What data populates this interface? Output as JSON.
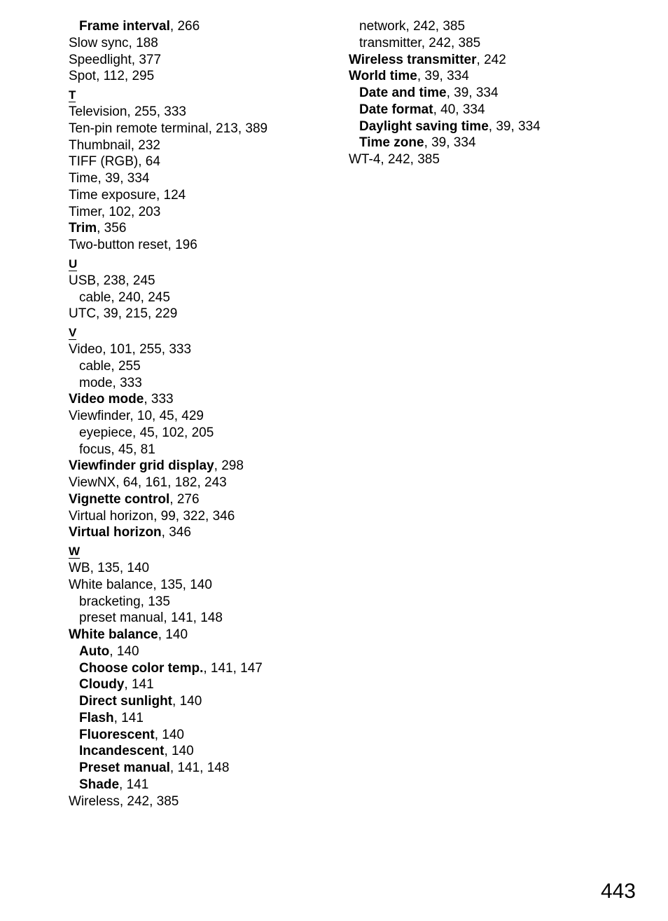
{
  "page_number": "443",
  "left_column": [
    {
      "bold_prefix": "Frame interval",
      "rest": ", 266",
      "indent": 1
    },
    {
      "text": "Slow sync, 188",
      "indent": 0
    },
    {
      "text": "Speedlight, 377",
      "indent": 0
    },
    {
      "text": "Spot, 112, 295",
      "indent": 0
    },
    {
      "letter": "T"
    },
    {
      "text": "Television, 255, 333",
      "indent": 0
    },
    {
      "text": "Ten-pin remote terminal, 213, 389",
      "indent": 0
    },
    {
      "text": "Thumbnail, 232",
      "indent": 0
    },
    {
      "text": "TIFF (RGB), 64",
      "indent": 0
    },
    {
      "text": "Time, 39, 334",
      "indent": 0
    },
    {
      "text": "Time exposure, 124",
      "indent": 0
    },
    {
      "text": "Timer, 102, 203",
      "indent": 0
    },
    {
      "bold_prefix": "Trim",
      "rest": ", 356",
      "indent": 0
    },
    {
      "text": "Two-button reset, 196",
      "indent": 0
    },
    {
      "letter": "U"
    },
    {
      "text": "USB, 238, 245",
      "indent": 0
    },
    {
      "text": "cable, 240, 245",
      "indent": 1
    },
    {
      "text": "UTC, 39, 215, 229",
      "indent": 0
    },
    {
      "letter": "V"
    },
    {
      "text": "Video, 101, 255, 333",
      "indent": 0
    },
    {
      "text": "cable, 255",
      "indent": 1
    },
    {
      "text": "mode, 333",
      "indent": 1
    },
    {
      "bold_prefix": "Video mode",
      "rest": ", 333",
      "indent": 0
    },
    {
      "text": "Viewfinder, 10, 45, 429",
      "indent": 0
    },
    {
      "text": "eyepiece, 45, 102, 205",
      "indent": 1
    },
    {
      "text": "focus, 45, 81",
      "indent": 1
    },
    {
      "bold_prefix": "Viewfinder grid display",
      "rest": ", 298",
      "indent": 0
    },
    {
      "text": "ViewNX, 64, 161, 182, 243",
      "indent": 0
    },
    {
      "bold_prefix": "Vignette control",
      "rest": ", 276",
      "indent": 0
    },
    {
      "text": "Virtual horizon, 99, 322, 346",
      "indent": 0
    },
    {
      "bold_prefix": "Virtual horizon",
      "rest": ", 346",
      "indent": 0
    },
    {
      "letter": "W"
    },
    {
      "text": "WB, 135, 140",
      "indent": 0
    },
    {
      "text": "White balance, 135, 140",
      "indent": 0
    },
    {
      "text": "bracketing, 135",
      "indent": 1
    },
    {
      "text": "preset manual, 141, 148",
      "indent": 1
    },
    {
      "bold_prefix": "White balance",
      "rest": ", 140",
      "indent": 0
    },
    {
      "bold_prefix": "Auto",
      "rest": ", 140",
      "indent": 1
    },
    {
      "bold_prefix": "Choose color temp.",
      "rest": ", 141, 147",
      "indent": 1
    },
    {
      "bold_prefix": "Cloudy",
      "rest": ", 141",
      "indent": 1
    },
    {
      "bold_prefix": "Direct sunlight",
      "rest": ", 140",
      "indent": 1
    },
    {
      "bold_prefix": "Flash",
      "rest": ", 141",
      "indent": 1
    },
    {
      "bold_prefix": "Fluorescent",
      "rest": ", 140",
      "indent": 1
    },
    {
      "bold_prefix": "Incandescent",
      "rest": ", 140",
      "indent": 1
    },
    {
      "bold_prefix": "Preset manual",
      "rest": ", 141, 148",
      "indent": 1
    },
    {
      "bold_prefix": "Shade",
      "rest": ", 141",
      "indent": 1
    },
    {
      "text": "Wireless, 242, 385",
      "indent": 0
    }
  ],
  "right_column": [
    {
      "text": "network, 242, 385",
      "indent": 1
    },
    {
      "text": "transmitter, 242, 385",
      "indent": 1
    },
    {
      "bold_prefix": "Wireless transmitter",
      "rest": ", 242",
      "indent": 0
    },
    {
      "bold_prefix": "World time",
      "rest": ", 39, 334",
      "indent": 0
    },
    {
      "bold_prefix": "Date and time",
      "rest": ", 39, 334",
      "indent": 1
    },
    {
      "bold_prefix": "Date format",
      "rest": ", 40, 334",
      "indent": 1
    },
    {
      "bold_prefix": "Daylight saving time",
      "rest": ", 39, 334",
      "indent": 1
    },
    {
      "bold_prefix": "Time zone",
      "rest": ", 39, 334",
      "indent": 1
    },
    {
      "text": "WT-4, 242, 385",
      "indent": 0
    }
  ]
}
